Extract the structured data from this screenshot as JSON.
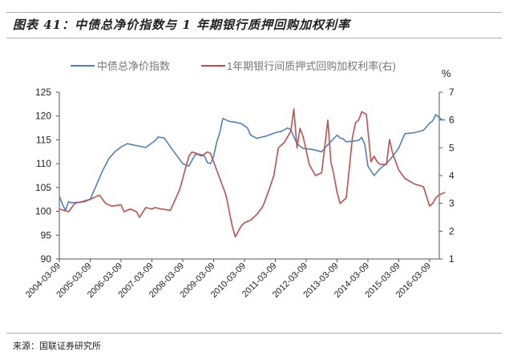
{
  "figure": {
    "title": "图表 41：中债总净价指数与 1 年期银行质押回购加权利率",
    "source": "来源：国联证券研究所"
  },
  "legend": {
    "series1": "中债总净价指数",
    "series2": "1年期银行间质押式回购加权利率(右)"
  },
  "axes": {
    "right_unit": "%",
    "left_ticks": [
      "90",
      "95",
      "100",
      "105",
      "110",
      "115",
      "120",
      "125"
    ],
    "right_ticks": [
      "1",
      "2",
      "3",
      "4",
      "5",
      "6",
      "7"
    ],
    "x_ticks": [
      "2004-03-09",
      "2005-03-09",
      "2006-03-09",
      "2007-03-09",
      "2008-03-09",
      "2009-03-09",
      "2010-03-09",
      "2011-03-09",
      "2012-03-09",
      "2013-03-09",
      "2014-03-09",
      "2015-03-09",
      "2016-03-09"
    ]
  },
  "colors": {
    "series1": "#4f81bd",
    "series2": "#c0504d"
  },
  "chart_data": {
    "type": "line",
    "title": "中债总净价指数与 1 年期银行质押回购加权利率",
    "xlabel": "",
    "ylabel": "",
    "ylabel_right": "%",
    "ylim": [
      90,
      125
    ],
    "ylim_right": [
      1,
      7
    ],
    "legend_position": "top",
    "grid": false,
    "x_categories": [
      "2004-03-09",
      "2005-03-09",
      "2006-03-09",
      "2007-03-09",
      "2008-03-09",
      "2009-03-09",
      "2010-03-09",
      "2011-03-09",
      "2012-03-09",
      "2013-03-09",
      "2014-03-09",
      "2015-03-09",
      "2016-03-09"
    ],
    "series": [
      {
        "name": "中债总净价指数",
        "axis": "left",
        "x": [
          2004.0,
          2004.1,
          2004.2,
          2004.3,
          2004.4,
          2004.6,
          2004.8,
          2005.0,
          2005.2,
          2005.4,
          2005.6,
          2005.8,
          2006.0,
          2006.2,
          2006.5,
          2006.8,
          2007.1,
          2007.2,
          2007.4,
          2007.6,
          2008.0,
          2008.2,
          2008.3,
          2008.4,
          2008.55,
          2008.7,
          2008.8,
          2008.9,
          2009.0,
          2009.1,
          2009.2,
          2009.3,
          2009.5,
          2009.7,
          2009.9,
          2010.1,
          2010.2,
          2010.4,
          2010.5,
          2010.7,
          2011.0,
          2011.2,
          2011.4,
          2011.5,
          2011.7,
          2011.9,
          2012.2,
          2012.5,
          2012.7,
          2013.0,
          2013.1,
          2013.2,
          2013.3,
          2013.5,
          2013.7,
          2013.8,
          2013.9,
          2014.0,
          2014.2,
          2014.4,
          2014.6,
          2014.8,
          2015.0,
          2015.1,
          2015.2,
          2015.5,
          2015.8,
          2016.0,
          2016.1,
          2016.2,
          2016.4,
          2016.5
        ],
        "values": [
          103.2,
          101.5,
          100.2,
          102.0,
          101.8,
          101.9,
          102.0,
          102.5,
          105.5,
          108.5,
          111.0,
          112.5,
          113.5,
          114.2,
          113.8,
          113.4,
          114.8,
          115.6,
          115.4,
          113.5,
          110.0,
          109.5,
          110.7,
          111.9,
          112.0,
          111.6,
          110.2,
          110.0,
          111.5,
          114.5,
          116.5,
          119.5,
          118.9,
          118.7,
          118.4,
          117.5,
          116.0,
          115.3,
          115.5,
          115.8,
          116.5,
          116.8,
          117.5,
          117.1,
          114.2,
          113.2,
          113.0,
          112.5,
          114.0,
          116.0,
          115.4,
          115.2,
          114.6,
          114.7,
          114.9,
          115.5,
          114.0,
          109.5,
          107.5,
          109.0,
          110.0,
          111.5,
          113.3,
          114.8,
          116.3,
          116.5,
          117.0,
          118.5,
          119.0,
          120.3,
          119.2,
          119.2
        ]
      },
      {
        "name": "1年期银行间质押式回购加权利率(右)",
        "axis": "right",
        "x": [
          2004.0,
          2004.3,
          2004.5,
          2004.7,
          2005.0,
          2005.3,
          2005.5,
          2005.7,
          2006.0,
          2006.1,
          2006.3,
          2006.5,
          2006.6,
          2006.8,
          2007.0,
          2007.1,
          2007.3,
          2007.6,
          2007.9,
          2008.0,
          2008.1,
          2008.2,
          2008.3,
          2008.45,
          2008.6,
          2008.8,
          2008.9,
          2009.0,
          2009.2,
          2009.4,
          2009.6,
          2009.7,
          2009.9,
          2010.0,
          2010.2,
          2010.4,
          2010.6,
          2010.8,
          2010.95,
          2011.1,
          2011.2,
          2011.3,
          2011.5,
          2011.6,
          2011.7,
          2011.8,
          2011.9,
          2012.1,
          2012.3,
          2012.5,
          2012.7,
          2012.8,
          2012.9,
          2013.0,
          2013.1,
          2013.3,
          2013.5,
          2013.6,
          2013.7,
          2013.8,
          2013.95,
          2014.1,
          2014.2,
          2014.3,
          2014.4,
          2014.6,
          2014.7,
          2014.8,
          2015.0,
          2015.2,
          2015.5,
          2015.8,
          2016.0,
          2016.1,
          2016.2,
          2016.3,
          2016.5
        ],
        "values": [
          2.8,
          2.7,
          3.0,
          3.05,
          3.15,
          3.3,
          3.0,
          2.9,
          2.95,
          2.7,
          2.8,
          2.7,
          2.5,
          2.85,
          2.8,
          2.85,
          2.8,
          2.75,
          3.5,
          3.9,
          4.3,
          4.7,
          4.85,
          4.8,
          4.7,
          4.85,
          4.8,
          4.5,
          3.9,
          3.3,
          2.2,
          1.8,
          2.2,
          2.3,
          2.4,
          2.6,
          2.9,
          3.5,
          4.0,
          5.0,
          5.1,
          5.2,
          5.6,
          6.4,
          5.0,
          5.7,
          5.4,
          4.4,
          4.0,
          4.1,
          6.0,
          4.5,
          4.0,
          3.4,
          3.0,
          3.2,
          5.4,
          5.9,
          6.0,
          6.3,
          6.2,
          4.5,
          4.7,
          4.5,
          4.4,
          4.4,
          5.3,
          4.8,
          4.2,
          3.9,
          3.7,
          3.6,
          2.9,
          3.0,
          3.2,
          3.3,
          3.4
        ]
      }
    ]
  }
}
